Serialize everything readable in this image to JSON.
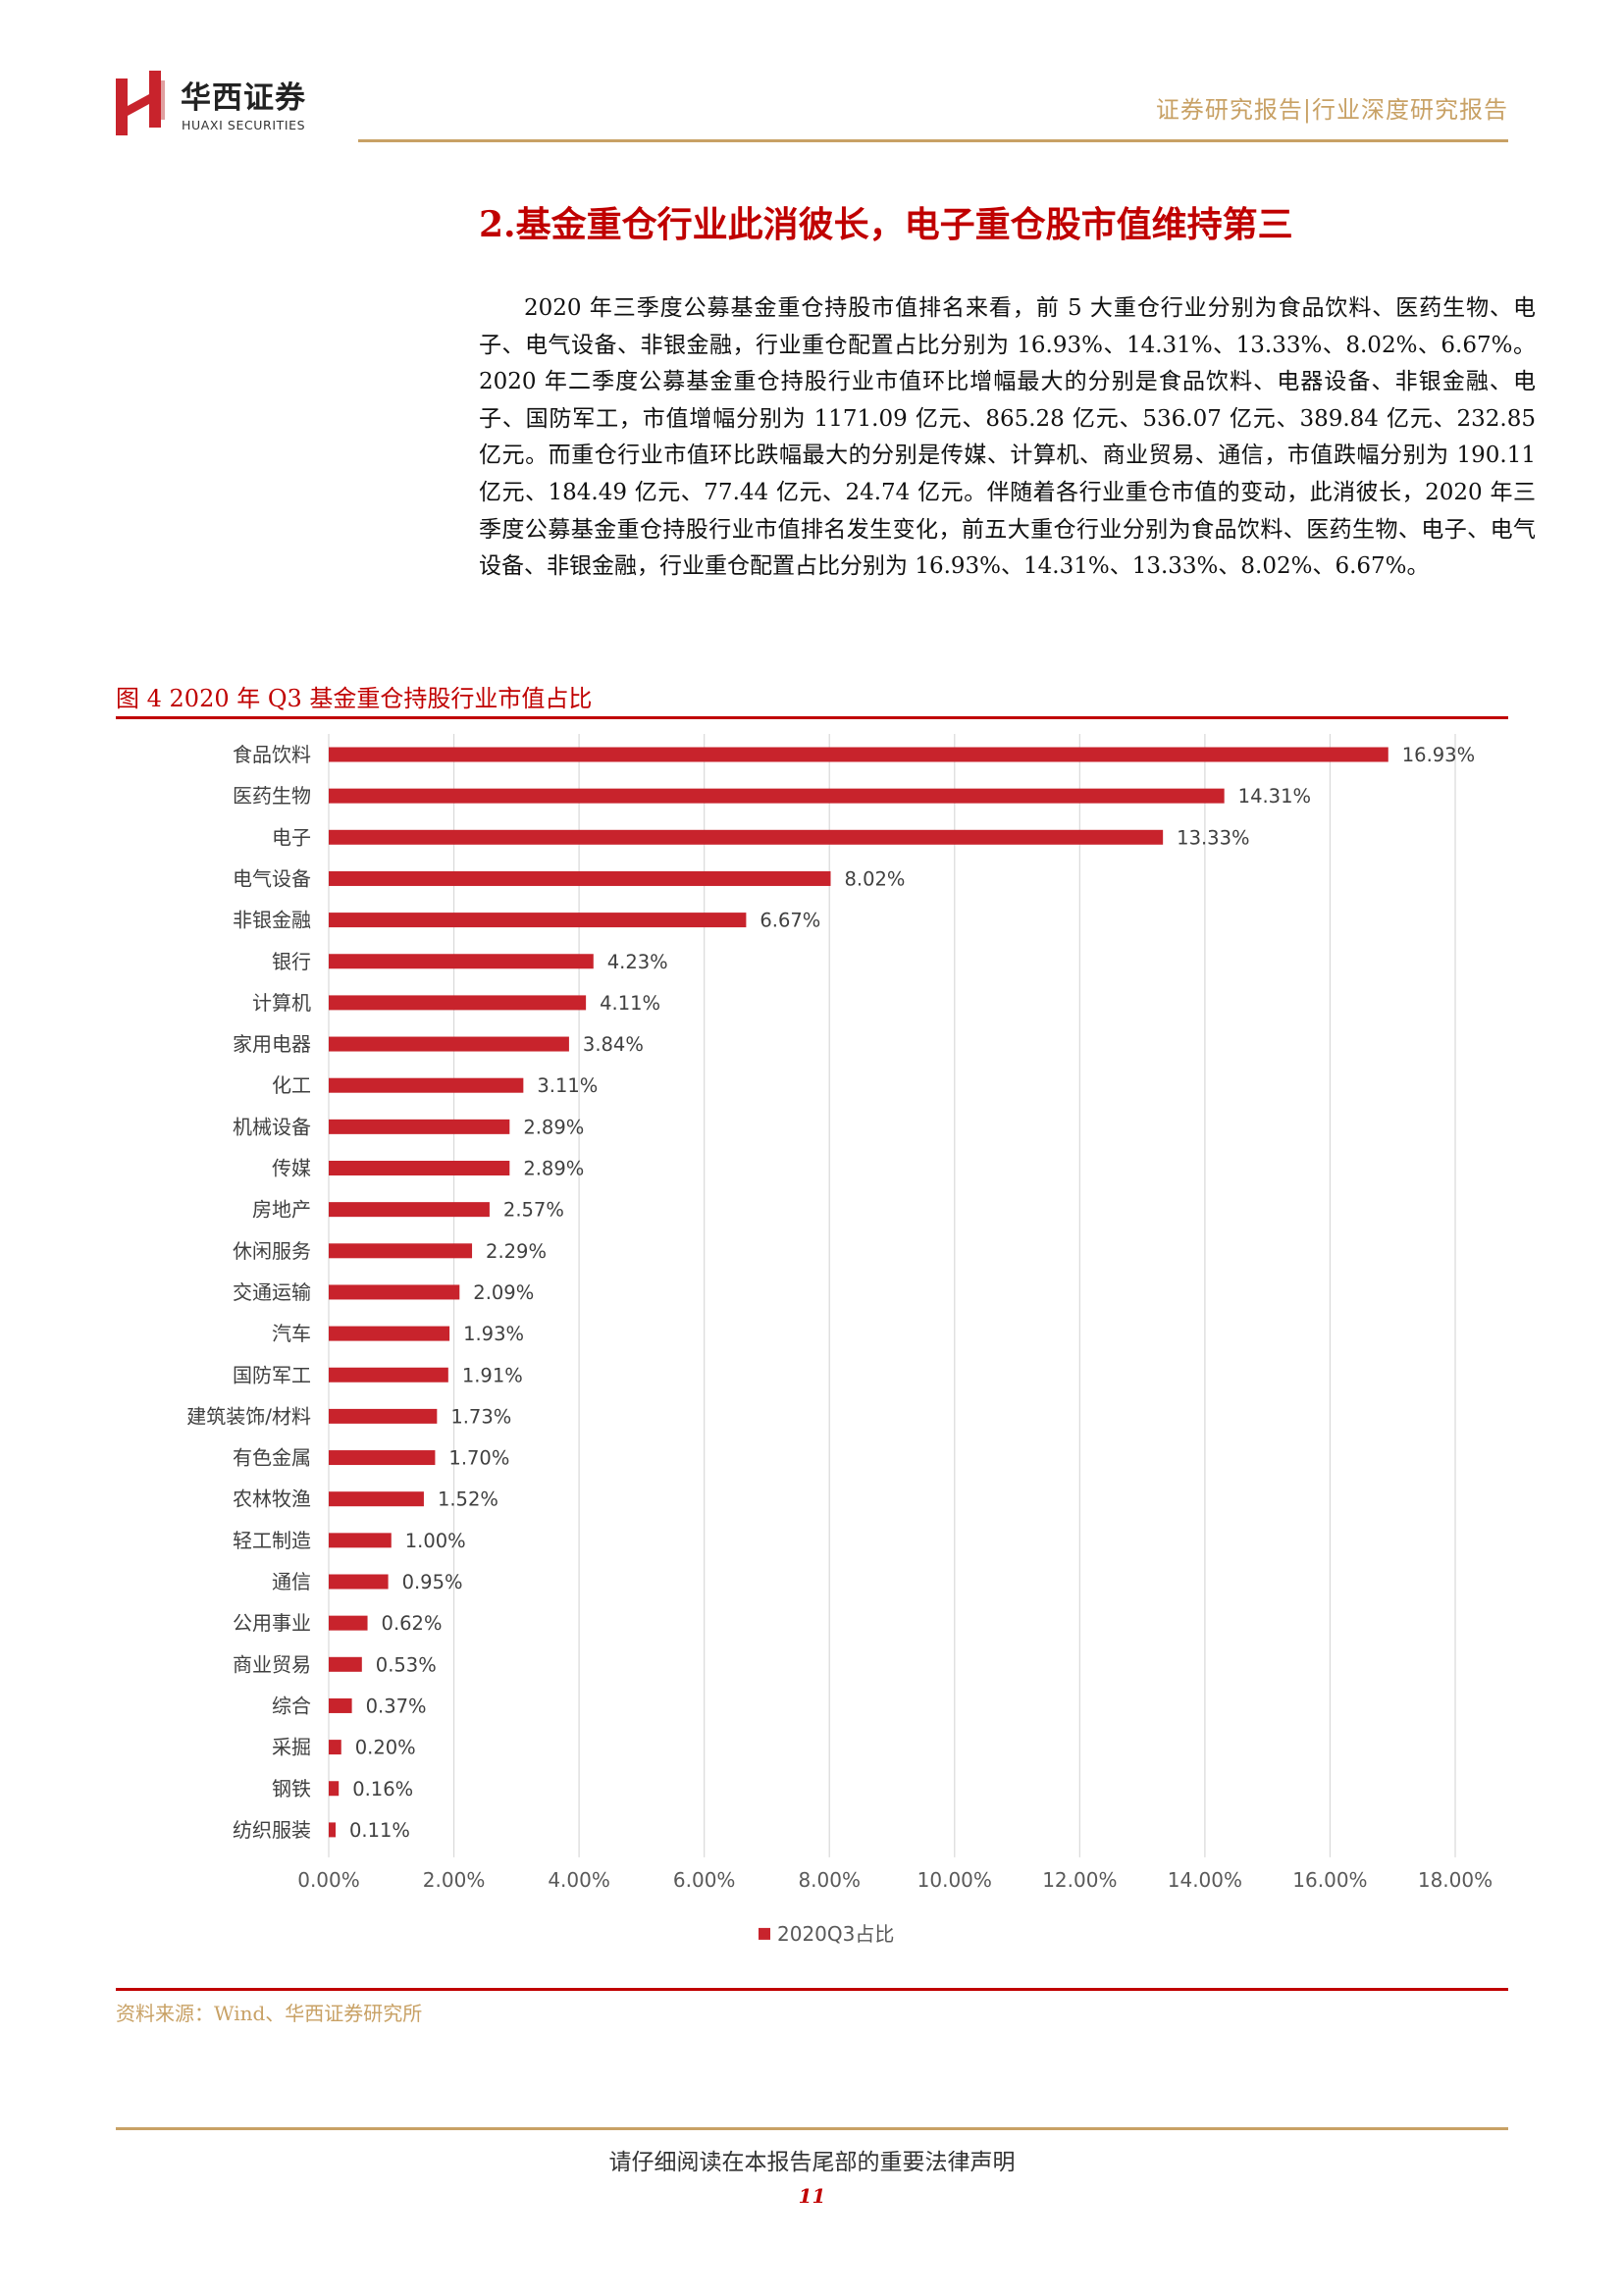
{
  "header": {
    "brand_cn": "华西证券",
    "brand_en": "HUAXI SECURITIES",
    "report_type": "证券研究报告|行业深度研究报告",
    "colors": {
      "gold": "#c8a165",
      "red": "#c00000"
    }
  },
  "section": {
    "title": "2.基金重仓行业此消彼长，电子重仓股市值维持第三",
    "paragraph": "2020 年三季度公募基金重仓持股市值排名来看，前 5 大重仓行业分别为食品饮料、医药生物、电子、电气设备、非银金融，行业重仓配置占比分别为 16.93%、14.31%、13.33%、8.02%、6.67%。2020 年二季度公募基金重仓持股行业市值环比增幅最大的分别是食品饮料、电器设备、非银金融、电子、国防军工，市值增幅分别为 1171.09 亿元、865.28 亿元、536.07 亿元、389.84 亿元、232.85 亿元。而重仓行业市值环比跌幅最大的分别是传媒、计算机、商业贸易、通信，市值跌幅分别为 190.11 亿元、184.49 亿元、77.44 亿元、24.74 亿元。伴随着各行业重仓市值的变动，此消彼长，2020 年三季度公募基金重仓持股行业市值排名发生变化，前五大重仓行业分别为食品饮料、医药生物、电子、电气设备、非银金融，行业重仓配置占比分别为 16.93%、14.31%、13.33%、8.02%、6.67%。"
  },
  "figure": {
    "caption": "图 4 2020 年 Q3 基金重仓持股行业市值占比",
    "source": "资料来源：Wind、华西证券研究所"
  },
  "chart_data": {
    "type": "bar",
    "orientation": "horizontal",
    "categories": [
      "食品饮料",
      "医药生物",
      "电子",
      "电气设备",
      "非银金融",
      "银行",
      "计算机",
      "家用电器",
      "化工",
      "机械设备",
      "传媒",
      "房地产",
      "休闲服务",
      "交通运输",
      "汽车",
      "国防军工",
      "建筑装饰/材料",
      "有色金属",
      "农林牧渔",
      "轻工制造",
      "通信",
      "公用事业",
      "商业贸易",
      "综合",
      "采掘",
      "钢铁",
      "纺织服装"
    ],
    "series": [
      {
        "name": "2020Q3占比",
        "values": [
          16.93,
          14.31,
          13.33,
          8.02,
          6.67,
          4.23,
          4.11,
          3.84,
          3.11,
          2.89,
          2.89,
          2.57,
          2.29,
          2.09,
          1.93,
          1.91,
          1.73,
          1.7,
          1.52,
          1.0,
          0.95,
          0.62,
          0.53,
          0.37,
          0.2,
          0.16,
          0.11
        ],
        "labels": [
          "16.93%",
          "14.31%",
          "13.33%",
          "8.02%",
          "6.67%",
          "4.23%",
          "4.11%",
          "3.84%",
          "3.11%",
          "2.89%",
          "2.89%",
          "2.57%",
          "2.29%",
          "2.09%",
          "1.93%",
          "1.91%",
          "1.73%",
          "1.70%",
          "1.52%",
          "1.00%",
          "0.95%",
          "0.62%",
          "0.53%",
          "0.37%",
          "0.20%",
          "0.16%",
          "0.11%"
        ],
        "color": "#c8232c"
      }
    ],
    "xlim": [
      0,
      18
    ],
    "xticks": [
      "0.00%",
      "2.00%",
      "4.00%",
      "6.00%",
      "8.00%",
      "10.00%",
      "12.00%",
      "14.00%",
      "16.00%",
      "18.00%"
    ],
    "grid": "vertical",
    "legend": "bottom-center"
  },
  "footer": {
    "note": "请仔细阅读在本报告尾部的重要法律声明",
    "page": "11"
  }
}
